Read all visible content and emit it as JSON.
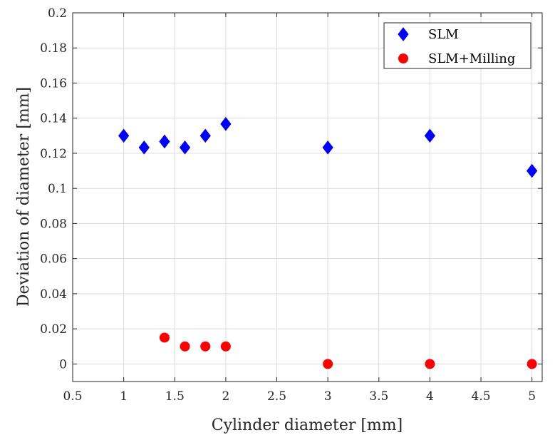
{
  "chart_data": {
    "type": "scatter",
    "title": "",
    "xlabel": "Cylinder diameter [mm]",
    "ylabel": "Deviation of diameter [mm]",
    "xlim": [
      0.5,
      5.1
    ],
    "ylim": [
      -0.01,
      0.2
    ],
    "xticks": [
      0.5,
      1,
      1.5,
      2,
      2.5,
      3,
      3.5,
      4,
      4.5,
      5
    ],
    "xtick_labels": [
      "0.5",
      "1",
      "1.5",
      "2",
      "2.5",
      "3",
      "3.5",
      "4",
      "4.5",
      "5"
    ],
    "yticks": [
      0,
      0.02,
      0.04,
      0.06,
      0.08,
      0.1,
      0.12,
      0.14,
      0.16,
      0.18,
      0.2
    ],
    "ytick_labels": [
      "0",
      "0.02",
      "0.04",
      "0.06",
      "0.08",
      "0.1",
      "0.12",
      "0.14",
      "0.16",
      "0.18",
      "0.2"
    ],
    "grid": true,
    "legend_position": "top-right",
    "series": [
      {
        "name": "SLM",
        "marker": "diamond",
        "color": "#0000ff",
        "x": [
          1,
          1.2,
          1.4,
          1.6,
          1.8,
          2,
          3,
          4,
          5
        ],
        "y": [
          0.13,
          0.1233,
          0.1267,
          0.1233,
          0.13,
          0.1367,
          0.1233,
          0.13,
          0.11
        ]
      },
      {
        "name": "SLM+Milling",
        "marker": "circle",
        "color": "#ff0000",
        "x": [
          1.4,
          1.6,
          1.8,
          2,
          3,
          4,
          5
        ],
        "y": [
          0.015,
          0.01,
          0.01,
          0.01,
          0,
          0,
          0
        ]
      }
    ]
  }
}
